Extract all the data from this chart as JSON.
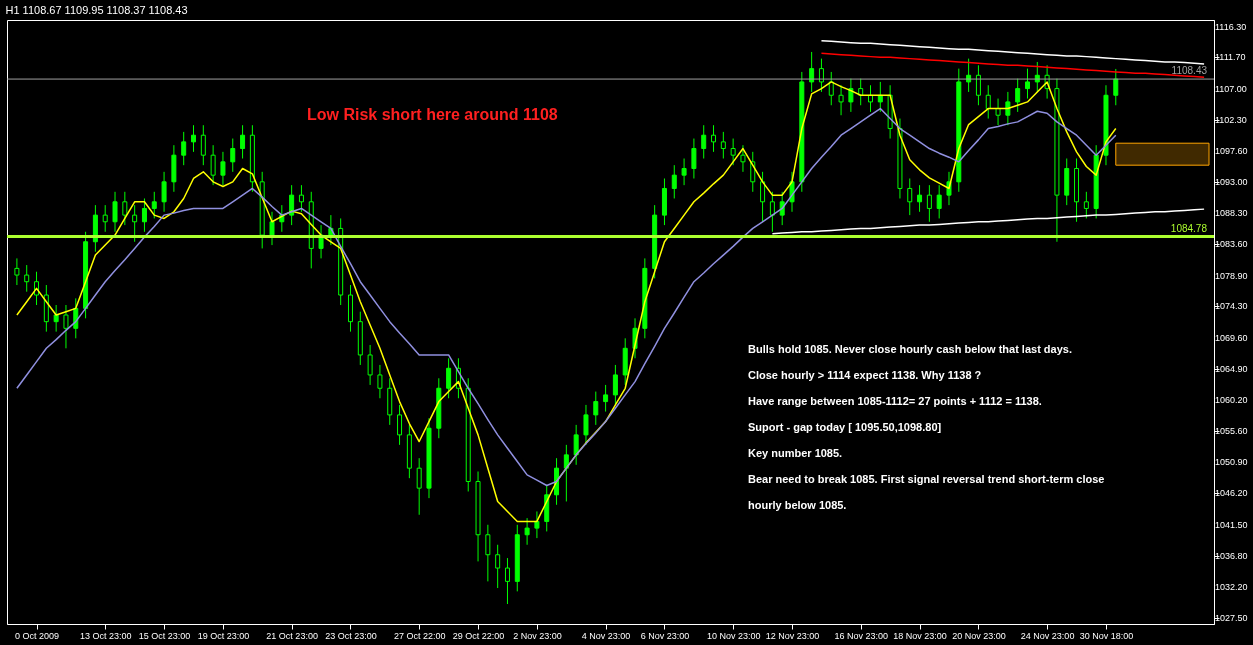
{
  "chart_data": {
    "type": "candlestick",
    "title": "H1  1108.67 1109.95 1108.37 1108.43",
    "color": "#00ff00",
    "categories": [
      null,
      null,
      "0 Oct 2009",
      null,
      null,
      null,
      null,
      null,
      null,
      "13 Oct 23:00",
      null,
      null,
      null,
      null,
      null,
      "15 Oct 23:00",
      null,
      null,
      null,
      null,
      null,
      "19 Oct 23:00",
      null,
      null,
      null,
      null,
      null,
      null,
      "21 Oct 23:00",
      null,
      null,
      null,
      null,
      null,
      "23 Oct 23:00",
      null,
      null,
      null,
      null,
      null,
      null,
      "27 Oct 22:00",
      null,
      null,
      null,
      null,
      null,
      "29 Oct 22:00",
      null,
      null,
      null,
      null,
      null,
      "2 Nov 23:00",
      null,
      null,
      null,
      null,
      null,
      null,
      "4 Nov 23:00",
      null,
      null,
      null,
      null,
      null,
      "6 Nov 23:00",
      null,
      null,
      null,
      null,
      null,
      null,
      "10 Nov 23:00",
      null,
      null,
      null,
      null,
      null,
      "12 Nov 23:00",
      null,
      null,
      null,
      null,
      null,
      null,
      "16 Nov 23:00",
      null,
      null,
      null,
      null,
      null,
      "18 Nov 23:00",
      null,
      null,
      null,
      null,
      null,
      "20 Nov 23:00",
      null,
      null,
      null,
      null,
      null,
      null,
      "24 Nov 23:00",
      null,
      null,
      null,
      null,
      null,
      "30 Nov 18:00",
      null,
      null,
      null,
      null,
      null,
      null,
      null,
      null,
      null,
      null
    ],
    "ohlc": [
      [
        1080,
        1081.5,
        1077.5,
        1079
      ],
      [
        1079,
        1080.5,
        1076.5,
        1078
      ],
      [
        1078,
        1079.5,
        1074.5,
        1076
      ],
      [
        1076,
        1077.5,
        1070.5,
        1072
      ],
      [
        1072,
        1074.5,
        1070.5,
        1073
      ],
      [
        1073,
        1074.5,
        1068,
        1071
      ],
      [
        1071,
        1075.5,
        1069.5,
        1074
      ],
      [
        1074,
        1085.5,
        1072.5,
        1084
      ],
      [
        1084,
        1089.5,
        1082.5,
        1088
      ],
      [
        1088,
        1089.5,
        1085.5,
        1087
      ],
      [
        1087,
        1091.5,
        1085.5,
        1090
      ],
      [
        1090,
        1091.5,
        1086.5,
        1088
      ],
      [
        1088,
        1089.5,
        1084,
        1087
      ],
      [
        1087,
        1090.5,
        1085.5,
        1089
      ],
      [
        1089,
        1091.5,
        1087.5,
        1090
      ],
      [
        1090,
        1094.5,
        1088.5,
        1093
      ],
      [
        1093,
        1098.5,
        1091.5,
        1097
      ],
      [
        1097,
        1100.5,
        1095.5,
        1099
      ],
      [
        1099,
        1101.5,
        1097.5,
        1100
      ],
      [
        1100,
        1101.5,
        1095.5,
        1097
      ],
      [
        1097,
        1098.5,
        1092.5,
        1094
      ],
      [
        1094,
        1097.5,
        1092.5,
        1096
      ],
      [
        1096,
        1099.5,
        1094.5,
        1098
      ],
      [
        1098,
        1101.5,
        1096.5,
        1100
      ],
      [
        1100,
        1101.5,
        1091.5,
        1093
      ],
      [
        1093,
        1094.5,
        1083,
        1085
      ],
      [
        1085,
        1088.5,
        1083.5,
        1087
      ],
      [
        1087,
        1089.5,
        1085.5,
        1088
      ],
      [
        1088,
        1092.5,
        1086.5,
        1091
      ],
      [
        1091,
        1092.5,
        1088.5,
        1090
      ],
      [
        1090,
        1091.5,
        1080,
        1083
      ],
      [
        1083,
        1086.5,
        1081.5,
        1085
      ],
      [
        1085,
        1088,
        1083.5,
        1086
      ],
      [
        1086,
        1087.5,
        1074.5,
        1076
      ],
      [
        1076,
        1077.5,
        1070.5,
        1072
      ],
      [
        1072,
        1073.5,
        1065.5,
        1067
      ],
      [
        1067,
        1068.5,
        1062.5,
        1064
      ],
      [
        1064,
        1065.5,
        1060.5,
        1062
      ],
      [
        1062,
        1063.5,
        1056.5,
        1058
      ],
      [
        1058,
        1059.5,
        1053.5,
        1055
      ],
      [
        1055,
        1056.5,
        1048.5,
        1050
      ],
      [
        1050,
        1051.5,
        1043,
        1047
      ],
      [
        1047,
        1057.5,
        1045.5,
        1056
      ],
      [
        1056,
        1063.5,
        1054.5,
        1062
      ],
      [
        1062,
        1066.5,
        1060.5,
        1065
      ],
      [
        1065,
        1066.5,
        1060.5,
        1062
      ],
      [
        1062,
        1063.5,
        1046.5,
        1048
      ],
      [
        1048,
        1049.5,
        1036,
        1040
      ],
      [
        1040,
        1041.5,
        1033,
        1037
      ],
      [
        1037,
        1038.5,
        1032,
        1035
      ],
      [
        1035,
        1036.5,
        1029.6,
        1033
      ],
      [
        1033,
        1041.5,
        1031.5,
        1040
      ],
      [
        1040,
        1042.5,
        1038.5,
        1041
      ],
      [
        1041,
        1043.5,
        1039.5,
        1042
      ],
      [
        1042,
        1047.5,
        1040.5,
        1046
      ],
      [
        1046,
        1051.5,
        1044.5,
        1050
      ],
      [
        1050,
        1053.5,
        1045,
        1052
      ],
      [
        1052,
        1056.5,
        1050.5,
        1055
      ],
      [
        1055,
        1059.5,
        1053.5,
        1058
      ],
      [
        1058,
        1061.5,
        1056.5,
        1060
      ],
      [
        1060,
        1062.5,
        1058.5,
        1061
      ],
      [
        1061,
        1065.5,
        1059.5,
        1064
      ],
      [
        1064,
        1069.5,
        1062.5,
        1068
      ],
      [
        1068,
        1072.5,
        1066.5,
        1071
      ],
      [
        1071,
        1081.5,
        1069.5,
        1080
      ],
      [
        1080,
        1089.5,
        1078.5,
        1088
      ],
      [
        1088,
        1093.5,
        1086.5,
        1092
      ],
      [
        1092,
        1095.5,
        1090.5,
        1094
      ],
      [
        1094,
        1096.5,
        1092.5,
        1095
      ],
      [
        1095,
        1099.5,
        1093.5,
        1098
      ],
      [
        1098,
        1101.5,
        1096.5,
        1100
      ],
      [
        1100,
        1101.5,
        1097.5,
        1099
      ],
      [
        1099,
        1100.5,
        1096.5,
        1098
      ],
      [
        1098,
        1099.5,
        1095.5,
        1097
      ],
      [
        1097,
        1098.5,
        1094.5,
        1096
      ],
      [
        1096,
        1097.5,
        1091.5,
        1093
      ],
      [
        1093,
        1094.5,
        1087,
        1090
      ],
      [
        1090,
        1091.5,
        1085.5,
        1088
      ],
      [
        1088,
        1091.5,
        1086.5,
        1090
      ],
      [
        1090,
        1094.5,
        1088.5,
        1093
      ],
      [
        1093,
        1109.5,
        1091.5,
        1108
      ],
      [
        1108,
        1112.5,
        1106.5,
        1110
      ],
      [
        1110,
        1111.5,
        1106.5,
        1108
      ],
      [
        1108,
        1109.5,
        1104.5,
        1106
      ],
      [
        1106,
        1107.5,
        1103,
        1105
      ],
      [
        1105,
        1108.5,
        1103.5,
        1107
      ],
      [
        1107,
        1108.5,
        1104.5,
        1106
      ],
      [
        1106,
        1107.5,
        1103.5,
        1105
      ],
      [
        1105,
        1108,
        1103.5,
        1106
      ],
      [
        1106,
        1107.5,
        1099.5,
        1101
      ],
      [
        1101,
        1102.5,
        1090.5,
        1092
      ],
      [
        1092,
        1093.5,
        1088,
        1090
      ],
      [
        1090,
        1092.5,
        1088.5,
        1091
      ],
      [
        1091,
        1092.5,
        1087,
        1089
      ],
      [
        1089,
        1092.5,
        1087.5,
        1091
      ],
      [
        1091,
        1094.5,
        1089.5,
        1093
      ],
      [
        1093,
        1110,
        1091.5,
        1108
      ],
      [
        1108,
        1111.5,
        1106.5,
        1109
      ],
      [
        1109,
        1110.5,
        1104.5,
        1106
      ],
      [
        1106,
        1107.5,
        1102.5,
        1104
      ],
      [
        1104,
        1105.5,
        1101.5,
        1103
      ],
      [
        1103,
        1106.5,
        1101.5,
        1105
      ],
      [
        1105,
        1108.5,
        1103.5,
        1107
      ],
      [
        1107,
        1110,
        1105.5,
        1108
      ],
      [
        1108,
        1111,
        1106.5,
        1109
      ],
      [
        1109,
        1110.5,
        1105.5,
        1107
      ],
      [
        1107,
        1108.5,
        1084,
        1091
      ],
      [
        1091,
        1096.5,
        1089.5,
        1095
      ],
      [
        1095,
        1096.5,
        1087,
        1090
      ],
      [
        1090,
        1091.5,
        1087.5,
        1089
      ],
      [
        1089,
        1098.5,
        1087.5,
        1097
      ],
      [
        1097,
        1107.5,
        1095.5,
        1106
      ],
      [
        1106,
        1109.95,
        1104.5,
        1108.43
      ],
      null,
      null,
      null,
      null,
      null,
      null,
      null,
      null,
      null
    ],
    "series": [
      {
        "type": "line",
        "color": "#ffff00",
        "values": [
          1073,
          1075,
          1077,
          1075,
          1073,
          1073.5,
          1074,
          1078,
          1082,
          1083.5,
          1085,
          1087.5,
          1090,
          1090,
          1088,
          1087.5,
          1088.5,
          1090.5,
          1093.5,
          1094.5,
          1093,
          1092.3,
          1093,
          1095,
          1094.2,
          1090.6,
          1087,
          1087.8,
          1088.6,
          1088.2,
          1086.6,
          1085,
          1084,
          1083,
          1079,
          1075,
          1071.5,
          1068,
          1064,
          1060,
          1056.7,
          1054,
          1057,
          1060,
          1061.5,
          1063,
          1059,
          1055,
          1050,
          1045,
          1043.5,
          1042,
          1042,
          1042,
          1045,
          1048,
          1050,
          1052,
          1053.8,
          1055.4,
          1057,
          1059.5,
          1062,
          1068.5,
          1075,
          1079.5,
          1084,
          1086,
          1088,
          1090,
          1091.3,
          1092.7,
          1094,
          1096,
          1098,
          1095.5,
          1093,
          1091,
          1091,
          1093,
          1101,
          1106.2,
          1107,
          1108,
          1107.3,
          1106.7,
          1106,
          1106,
          1106,
          1106,
          1100,
          1096.3,
          1094.8,
          1093.6,
          1092.8,
          1092,
          1098,
          1101.6,
          1102.8,
          1104,
          1104,
          1104,
          1104.5,
          1105,
          1106.5,
          1108,
          1104,
          1100.5,
          1097.5,
          1095.3,
          1094,
          1099,
          1101,
          null,
          null,
          null,
          null,
          null,
          null,
          null,
          null,
          null
        ]
      },
      {
        "type": "line",
        "color": "#9090e0",
        "values": [
          1062,
          1064,
          1066,
          1068,
          1069.3,
          1070.7,
          1072,
          1074,
          1076,
          1078,
          1079.7,
          1081.3,
          1083,
          1084.7,
          1086.3,
          1088,
          1088.3,
          1088.7,
          1089,
          1089,
          1089,
          1089,
          1090,
          1091,
          1092,
          1090.7,
          1089.3,
          1088,
          1088.5,
          1089,
          1088,
          1087,
          1086,
          1083.3,
          1080.7,
          1078,
          1076,
          1074,
          1072,
          1070.3,
          1068.7,
          1067,
          1067,
          1067,
          1067,
          1064.5,
          1062,
          1059.7,
          1057.3,
          1055,
          1053,
          1051,
          1049,
          1048.2,
          1047.4,
          1048,
          1050,
          1052,
          1053.7,
          1055.3,
          1057,
          1059,
          1061,
          1063,
          1065.7,
          1068.3,
          1071,
          1073.3,
          1075.7,
          1078,
          1079.3,
          1080.7,
          1082,
          1083.3,
          1084.7,
          1086,
          1087,
          1088,
          1089,
          1091,
          1093,
          1095,
          1096.7,
          1098.3,
          1100,
          1101,
          1102,
          1103,
          1104,
          1102.5,
          1101,
          1100,
          1099,
          1098,
          1097.3,
          1096.7,
          1096,
          1097.7,
          1099.3,
          1101,
          1101.3,
          1101.7,
          1102,
          1102.8,
          1103.6,
          1103.3,
          1102,
          1101,
          1100,
          1098.5,
          1097,
          1098.5,
          1100,
          null,
          null,
          null,
          null,
          null,
          null,
          null,
          null,
          null
        ]
      },
      {
        "type": "line",
        "color": "#ffffff",
        "values": [
          null,
          null,
          null,
          null,
          null,
          null,
          null,
          null,
          null,
          null,
          null,
          null,
          null,
          null,
          null,
          null,
          null,
          null,
          null,
          null,
          null,
          null,
          null,
          null,
          null,
          null,
          null,
          null,
          null,
          null,
          null,
          null,
          null,
          null,
          null,
          null,
          null,
          null,
          null,
          null,
          null,
          null,
          null,
          null,
          null,
          null,
          null,
          null,
          null,
          null,
          null,
          null,
          null,
          null,
          null,
          null,
          null,
          null,
          null,
          null,
          null,
          null,
          null,
          null,
          null,
          null,
          null,
          null,
          null,
          null,
          null,
          null,
          null,
          null,
          null,
          null,
          null,
          null,
          null,
          null,
          null,
          null,
          1114.2,
          1114.1,
          1114.0,
          1113.9,
          1113.8,
          1113.8,
          1113.7,
          1113.6,
          1113.5,
          1113.4,
          1113.3,
          1113.2,
          1113.1,
          1113.0,
          1112.9,
          1112.9,
          1112.8,
          1112.7,
          1112.6,
          1112.5,
          1112.4,
          1112.3,
          1112.2,
          1112.1,
          1112.0,
          1111.9,
          1111.9,
          1111.8,
          1111.7,
          1111.6,
          1111.5,
          1111.4,
          1111.3,
          1111.2,
          1111.1,
          1111.0,
          1111.0,
          1110.9,
          1110.8,
          1110.7
        ]
      },
      {
        "type": "line",
        "color": "#ffffff",
        "values": [
          null,
          null,
          null,
          null,
          null,
          null,
          null,
          null,
          null,
          null,
          null,
          null,
          null,
          null,
          null,
          null,
          null,
          null,
          null,
          null,
          null,
          null,
          null,
          null,
          null,
          null,
          null,
          null,
          null,
          null,
          null,
          null,
          null,
          null,
          null,
          null,
          null,
          null,
          null,
          null,
          null,
          null,
          null,
          null,
          null,
          null,
          null,
          null,
          null,
          null,
          null,
          null,
          null,
          null,
          null,
          null,
          null,
          null,
          null,
          null,
          null,
          null,
          null,
          null,
          null,
          null,
          null,
          null,
          null,
          null,
          null,
          null,
          null,
          null,
          null,
          null,
          null,
          1085.2,
          1085.3,
          1085.4,
          1085.5,
          1085.5,
          1085.6,
          1085.7,
          1085.8,
          1085.9,
          1086.0,
          1086.0,
          1086.1,
          1086.2,
          1086.3,
          1086.4,
          1086.5,
          1086.5,
          1086.6,
          1086.7,
          1086.8,
          1086.9,
          1087.0,
          1087.0,
          1087.1,
          1087.2,
          1087.3,
          1087.4,
          1087.5,
          1087.5,
          1087.6,
          1087.7,
          1087.8,
          1087.9,
          1088.0,
          1088.0,
          1088.1,
          1088.2,
          1088.3,
          1088.4,
          1088.5,
          1088.5,
          1088.6,
          1088.7,
          1088.8,
          1088.9
        ]
      },
      {
        "type": "line",
        "color": "#ff0000",
        "values": [
          null,
          null,
          null,
          null,
          null,
          null,
          null,
          null,
          null,
          null,
          null,
          null,
          null,
          null,
          null,
          null,
          null,
          null,
          null,
          null,
          null,
          null,
          null,
          null,
          null,
          null,
          null,
          null,
          null,
          null,
          null,
          null,
          null,
          null,
          null,
          null,
          null,
          null,
          null,
          null,
          null,
          null,
          null,
          null,
          null,
          null,
          null,
          null,
          null,
          null,
          null,
          null,
          null,
          null,
          null,
          null,
          null,
          null,
          null,
          null,
          null,
          null,
          null,
          null,
          null,
          null,
          null,
          null,
          null,
          null,
          null,
          null,
          null,
          null,
          null,
          null,
          null,
          null,
          null,
          null,
          null,
          null,
          1112.3,
          1112.2,
          1112.1,
          1112.0,
          1111.9,
          1111.8,
          1111.7,
          1111.7,
          1111.6,
          1111.5,
          1111.4,
          1111.3,
          1111.2,
          1111.1,
          1111.0,
          1110.9,
          1110.8,
          1110.7,
          1110.6,
          1110.5,
          1110.5,
          1110.4,
          1110.3,
          1110.2,
          1110.1,
          1110.0,
          1109.9,
          1109.8,
          1109.7,
          1109.6,
          1109.5,
          1109.4,
          1109.3,
          1109.3,
          1109.2,
          1109.1,
          1109.0,
          1108.9,
          1108.8,
          1108.7
        ]
      }
    ],
    "ylim": [
      1026.6,
      1117.3
    ],
    "yticks": [
      {
        "value": 1116.3,
        "label": "1116.30"
      },
      {
        "value": 1111.7,
        "label": "1111.70"
      },
      {
        "value": 1107,
        "label": "1107.00"
      },
      {
        "value": 1102.3,
        "label": "1102.30"
      },
      {
        "value": 1097.6,
        "label": "1097.60"
      },
      {
        "value": 1093,
        "label": "1093.00"
      },
      {
        "value": 1088.3,
        "label": "1088.30"
      },
      {
        "value": 1083.6,
        "label": "1083.60"
      },
      {
        "value": 1078.9,
        "label": "1078.90"
      },
      {
        "value": 1074.3,
        "label": "1074.30"
      },
      {
        "value": 1069.6,
        "label": "1069.60"
      },
      {
        "value": 1064.9,
        "label": "1064.90"
      },
      {
        "value": 1060.2,
        "label": "1060.20"
      },
      {
        "value": 1055.6,
        "label": "1055.60"
      },
      {
        "value": 1050.9,
        "label": "1050.90"
      },
      {
        "value": 1046.2,
        "label": "1046.20"
      },
      {
        "value": 1041.5,
        "label": "1041.50"
      },
      {
        "value": 1036.8,
        "label": "1036.80"
      },
      {
        "value": 1032.2,
        "label": "1032.20"
      },
      {
        "value": 1027.5,
        "label": "1027.50"
      }
    ],
    "ref_lines": [
      {
        "axis": "y",
        "value": 1084.78,
        "label": "1084.78",
        "color": "#adff2f"
      },
      {
        "axis": "y",
        "value": 1108.43,
        "label": "1108.43",
        "color": "#a0a0a0"
      }
    ],
    "bands": [
      {
        "axis": "y",
        "from": 1095.5,
        "to": 1098.8,
        "color": "#ffa500"
      }
    ],
    "annotations": [
      "Low Risk short here around 1108",
      "Bulls hold 1085. Never close hourly cash below that last days.",
      "Close hourly > 1114 expect 1138. Why 1138 ?",
      "Have range between 1085-1112= 27 points + 1112 = 1138.",
      "Suport - gap today [ 1095.50,1098.80]",
      "Key number 1085.",
      "Bear need to break 1085. First signal reversal trend short-term close",
      "hourly below 1085."
    ]
  }
}
